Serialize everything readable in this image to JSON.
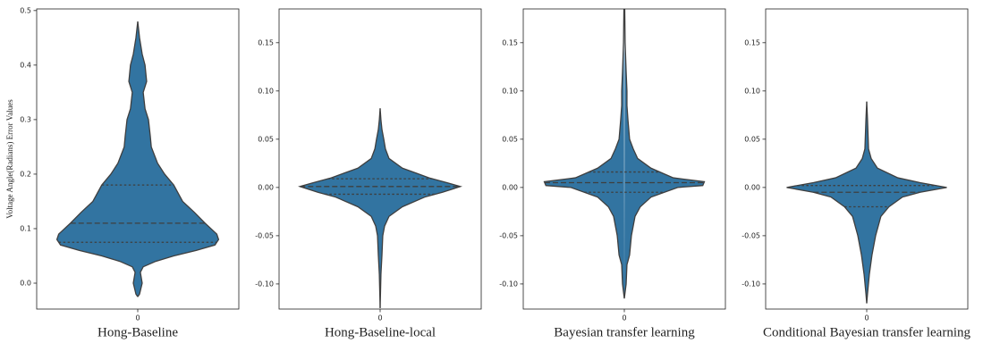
{
  "chart_data": [
    {
      "type": "violin",
      "xlabel": "Hong-Baseline",
      "ylabel": "Voltage Angle(Radians) Error Values",
      "categories": [
        "0"
      ],
      "ylim": [
        -0.0475,
        0.503
      ],
      "yticks": [
        {
          "value": 0,
          "label": "0.0"
        },
        {
          "value": 0.1,
          "label": "0.1"
        },
        {
          "value": 0.2,
          "label": "0.2"
        },
        {
          "value": 0.3,
          "label": "0.3"
        },
        {
          "value": 0.4,
          "label": "0.4"
        },
        {
          "value": 0.5,
          "label": "0.5"
        }
      ],
      "color": "#3274a1",
      "profile_y": [
        0.48,
        0.45,
        0.42,
        0.4,
        0.37,
        0.35,
        0.32,
        0.3,
        0.27,
        0.25,
        0.22,
        0.2,
        0.18,
        0.15,
        0.13,
        0.11,
        0.09,
        0.08,
        0.07,
        0.06,
        0.05,
        0.04,
        0.03,
        0.02,
        0.0,
        -0.02,
        -0.025
      ],
      "half_widths": [
        0,
        0.009,
        0.022,
        0.036,
        0.044,
        0.027,
        0.036,
        0.053,
        0.062,
        0.067,
        0.098,
        0.133,
        0.178,
        0.222,
        0.28,
        0.333,
        0.391,
        0.4,
        0.382,
        0.289,
        0.178,
        0.089,
        0.027,
        0.013,
        0.022,
        0.009,
        0
      ],
      "quartiles": [
        0.075,
        0.11,
        0.18
      ]
    },
    {
      "type": "violin",
      "xlabel": "Hong-Baseline-local",
      "categories": [
        "0"
      ],
      "ylim": [
        -0.126,
        0.185
      ],
      "yticks": [
        {
          "value": -0.1,
          "label": "-0.10"
        },
        {
          "value": -0.05,
          "label": "-0.05"
        },
        {
          "value": 0,
          "label": "0.00"
        },
        {
          "value": 0.05,
          "label": "0.05"
        },
        {
          "value": 0.1,
          "label": "0.10"
        },
        {
          "value": 0.15,
          "label": "0.15"
        }
      ],
      "color": "#3274a1",
      "profile_y": [
        0.082,
        0.07,
        0.06,
        0.05,
        0.04,
        0.03,
        0.02,
        0.015,
        0.01,
        0.005,
        0.001,
        -0.005,
        -0.01,
        -0.02,
        -0.03,
        -0.04,
        -0.05,
        -0.07,
        -0.09,
        -0.125
      ],
      "half_widths": [
        0,
        0.004,
        0.009,
        0.018,
        0.026,
        0.044,
        0.11,
        0.176,
        0.242,
        0.33,
        0.397,
        0.308,
        0.22,
        0.11,
        0.044,
        0.022,
        0.013,
        0.009,
        0.004,
        0
      ],
      "quartiles": [
        -0.007,
        0.001,
        0.009
      ]
    },
    {
      "type": "violin",
      "xlabel": "Bayesian transfer learning",
      "categories": [
        "0"
      ],
      "ylim": [
        -0.126,
        0.185
      ],
      "yticks": [
        {
          "value": -0.1,
          "label": "-0.10"
        },
        {
          "value": -0.05,
          "label": "-0.05"
        },
        {
          "value": 0,
          "label": "0.00"
        },
        {
          "value": 0.05,
          "label": "0.05"
        },
        {
          "value": 0.1,
          "label": "0.10"
        },
        {
          "value": 0.15,
          "label": "0.15"
        }
      ],
      "color": "#3274a1",
      "profile_y": [
        0.185,
        0.15,
        0.12,
        0.1,
        0.085,
        0.07,
        0.05,
        0.04,
        0.03,
        0.02,
        0.01,
        0.006,
        0.002,
        0.0,
        -0.01,
        -0.02,
        -0.03,
        -0.05,
        -0.07,
        -0.08,
        -0.1,
        -0.115
      ],
      "half_widths": [
        0.002,
        0.004,
        0.009,
        0.013,
        0.013,
        0.018,
        0.026,
        0.044,
        0.066,
        0.132,
        0.242,
        0.396,
        0.388,
        0.264,
        0.132,
        0.079,
        0.053,
        0.035,
        0.026,
        0.013,
        0.009,
        0
      ],
      "quartiles": [
        -0.005,
        0.005,
        0.016
      ]
    },
    {
      "type": "violin",
      "xlabel": "Conditional Bayesian transfer learning",
      "categories": [
        "0"
      ],
      "ylim": [
        -0.126,
        0.185
      ],
      "yticks": [
        {
          "value": -0.1,
          "label": "-0.10"
        },
        {
          "value": -0.05,
          "label": "-0.05"
        },
        {
          "value": 0,
          "label": "0.00"
        },
        {
          "value": 0.05,
          "label": "0.05"
        },
        {
          "value": 0.1,
          "label": "0.10"
        },
        {
          "value": 0.15,
          "label": "0.15"
        }
      ],
      "color": "#3274a1",
      "profile_y": [
        0.089,
        0.07,
        0.04,
        0.03,
        0.02,
        0.01,
        0.005,
        0.0,
        -0.005,
        -0.01,
        -0.02,
        -0.03,
        -0.05,
        -0.07,
        -0.09,
        -0.11,
        -0.12
      ],
      "half_widths": [
        0,
        0.004,
        0.009,
        0.022,
        0.053,
        0.154,
        0.264,
        0.396,
        0.264,
        0.176,
        0.11,
        0.07,
        0.044,
        0.026,
        0.013,
        0.004,
        0
      ],
      "quartiles": [
        -0.02,
        -0.005,
        0.002
      ]
    }
  ]
}
